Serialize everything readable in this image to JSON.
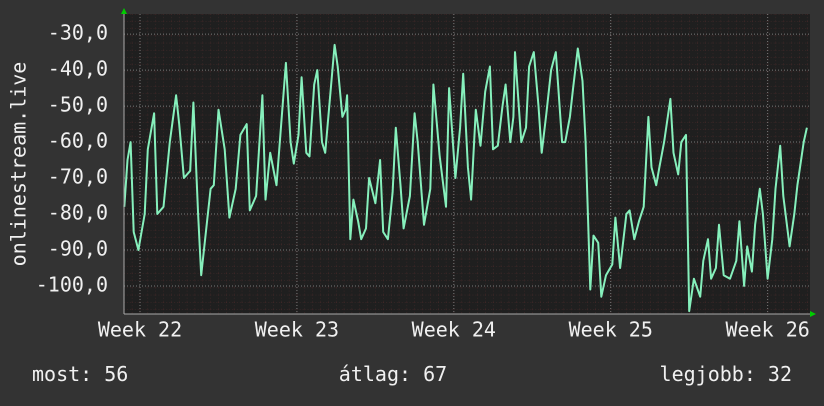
{
  "chart_data": {
    "type": "line",
    "y_label": "onlinestream.live",
    "color": "#86f0bc",
    "grid": true,
    "xlim": [
      21.898,
      26.27
    ],
    "ylim": [
      -107.8,
      -24.4
    ],
    "xticks": [
      {
        "value": 22,
        "label": "Week 22"
      },
      {
        "value": 23,
        "label": "Week 23"
      },
      {
        "value": 24,
        "label": "Week 24"
      },
      {
        "value": 25,
        "label": "Week 25"
      },
      {
        "value": 26,
        "label": "Week 26"
      }
    ],
    "yticks": [
      {
        "value": -30,
        "label": "-30,0"
      },
      {
        "value": -40,
        "label": "-40,0"
      },
      {
        "value": -50,
        "label": "-50,0"
      },
      {
        "value": -60,
        "label": "-60,0"
      },
      {
        "value": -70,
        "label": "-70,0"
      },
      {
        "value": -80,
        "label": "-80,0"
      },
      {
        "value": -90,
        "label": "-90,0"
      },
      {
        "value": -100,
        "label": "-100,0"
      }
    ],
    "x": [
      21.9,
      21.92,
      21.94,
      21.96,
      21.99,
      22.03,
      22.05,
      22.09,
      22.11,
      22.15,
      22.19,
      22.23,
      22.25,
      22.28,
      22.32,
      22.34,
      22.37,
      22.39,
      22.42,
      22.45,
      22.47,
      22.5,
      22.54,
      22.57,
      22.61,
      22.64,
      22.68,
      22.7,
      22.74,
      22.78,
      22.8,
      22.83,
      22.87,
      22.9,
      22.93,
      22.96,
      22.98,
      23.01,
      23.03,
      23.06,
      23.08,
      23.11,
      23.13,
      23.16,
      23.18,
      23.21,
      23.24,
      23.26,
      23.29,
      23.31,
      23.32,
      23.34,
      23.36,
      23.39,
      23.41,
      23.44,
      23.46,
      23.5,
      23.53,
      23.55,
      23.58,
      23.61,
      23.63,
      23.66,
      23.68,
      23.72,
      23.75,
      23.77,
      23.81,
      23.85,
      23.87,
      23.91,
      23.95,
      23.97,
      24.01,
      24.04,
      24.06,
      24.09,
      24.11,
      24.14,
      24.17,
      24.2,
      24.23,
      24.25,
      24.28,
      24.31,
      24.33,
      24.36,
      24.38,
      24.39,
      24.43,
      24.46,
      24.48,
      24.51,
      24.54,
      24.56,
      24.59,
      24.62,
      24.65,
      24.69,
      24.71,
      24.74,
      24.76,
      24.79,
      24.82,
      24.84,
      24.87,
      24.89,
      24.92,
      24.94,
      24.97,
      25.01,
      25.03,
      25.06,
      25.1,
      25.12,
      25.15,
      25.18,
      25.21,
      25.24,
      25.26,
      25.29,
      25.31,
      25.34,
      25.38,
      25.4,
      25.43,
      25.45,
      25.48,
      25.5,
      25.53,
      25.57,
      25.59,
      25.62,
      25.64,
      25.67,
      25.69,
      25.72,
      25.76,
      25.8,
      25.82,
      25.85,
      25.87,
      25.9,
      25.92,
      25.95,
      25.97,
      26.0,
      26.03,
      26.05,
      26.08,
      26.1,
      26.14,
      26.17,
      26.19,
      26.23,
      26.25
    ],
    "values": [
      -78,
      -65,
      -60,
      -85,
      -90,
      -80,
      -62,
      -52,
      -80,
      -78,
      -60,
      -47,
      -55,
      -70,
      -68,
      -49,
      -80,
      -97,
      -85,
      -73,
      -72,
      -51,
      -62,
      -81,
      -73,
      -58,
      -55,
      -79,
      -75,
      -47,
      -76,
      -63,
      -72,
      -55,
      -38,
      -60,
      -66,
      -58,
      -42,
      -63,
      -64,
      -44,
      -40,
      -60,
      -63,
      -48,
      -33,
      -39,
      -53,
      -51,
      -47,
      -87,
      -76,
      -82,
      -87,
      -84,
      -70,
      -77,
      -65,
      -85,
      -87,
      -74,
      -56,
      -72,
      -84,
      -75,
      -52,
      -60,
      -83,
      -73,
      -44,
      -64,
      -78,
      -45,
      -70,
      -56,
      -41,
      -67,
      -76,
      -51,
      -61,
      -46,
      -39,
      -62,
      -61,
      -50,
      -44,
      -60,
      -53,
      -35,
      -60,
      -56,
      -39,
      -35,
      -50,
      -63,
      -52,
      -40,
      -35,
      -60,
      -60,
      -53,
      -45,
      -34,
      -43,
      -60,
      -101,
      -86,
      -88,
      -103,
      -97,
      -94,
      -81,
      -95,
      -80,
      -79,
      -87,
      -82,
      -78,
      -53,
      -67,
      -72,
      -67,
      -60,
      -48,
      -63,
      -69,
      -60,
      -58,
      -107,
      -98,
      -103,
      -93,
      -87,
      -98,
      -95,
      -83,
      -97,
      -98,
      -93,
      -82,
      -100,
      -89,
      -96,
      -83,
      -73,
      -80,
      -98,
      -87,
      -73,
      -61,
      -75,
      -89,
      -80,
      -72,
      -60,
      -56
    ]
  },
  "footer": [
    {
      "label": "most:",
      "value": 56
    },
    {
      "label": "átlag:",
      "value": 67
    },
    {
      "label": "legjobb:",
      "value": 32
    }
  ]
}
